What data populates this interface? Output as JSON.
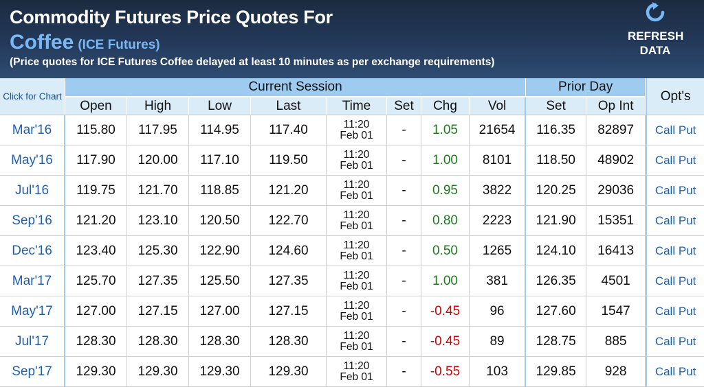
{
  "header": {
    "title": "Commodity Futures Price Quotes For",
    "commodity": "Coffee",
    "exchange": "(ICE Futures)",
    "note": "(Price quotes for ICE Futures Coffee delayed at least 10 minutes as per exchange requirements)",
    "refresh_icon": "refresh-icon",
    "refresh_label": "REFRESH DATA"
  },
  "table": {
    "click_chart_label": "Click for Chart",
    "group_current": "Current Session",
    "group_prior": "Prior Day",
    "opts_label": "Opt's",
    "columns": [
      "Open",
      "High",
      "Low",
      "Last",
      "Time",
      "Set",
      "Chg",
      "Vol",
      "Set",
      "Op Int"
    ],
    "rows": [
      {
        "month": "Mar'16",
        "open": "115.80",
        "high": "117.95",
        "low": "114.95",
        "last": "117.40",
        "time": "11:20",
        "date": "Feb 01",
        "set": "-",
        "chg": "1.05",
        "dir": "pos",
        "vol": "21654",
        "prior_set": "116.35",
        "op_int": "82897",
        "call": "Call",
        "put": "Put"
      },
      {
        "month": "May'16",
        "open": "117.90",
        "high": "120.00",
        "low": "117.10",
        "last": "119.50",
        "time": "11:20",
        "date": "Feb 01",
        "set": "-",
        "chg": "1.00",
        "dir": "pos",
        "vol": "8101",
        "prior_set": "118.50",
        "op_int": "48902",
        "call": "Call",
        "put": "Put"
      },
      {
        "month": "Jul'16",
        "open": "119.75",
        "high": "121.70",
        "low": "118.85",
        "last": "121.20",
        "time": "11:20",
        "date": "Feb 01",
        "set": "-",
        "chg": "0.95",
        "dir": "pos",
        "vol": "3822",
        "prior_set": "120.25",
        "op_int": "29036",
        "call": "Call",
        "put": "Put"
      },
      {
        "month": "Sep'16",
        "open": "121.20",
        "high": "123.10",
        "low": "120.50",
        "last": "122.70",
        "time": "11:20",
        "date": "Feb 01",
        "set": "-",
        "chg": "0.80",
        "dir": "pos",
        "vol": "2223",
        "prior_set": "121.90",
        "op_int": "15351",
        "call": "Call",
        "put": "Put"
      },
      {
        "month": "Dec'16",
        "open": "123.40",
        "high": "125.30",
        "low": "122.90",
        "last": "124.60",
        "time": "11:20",
        "date": "Feb 01",
        "set": "-",
        "chg": "0.50",
        "dir": "pos",
        "vol": "1265",
        "prior_set": "124.10",
        "op_int": "16413",
        "call": "Call",
        "put": "Put"
      },
      {
        "month": "Mar'17",
        "open": "125.70",
        "high": "127.35",
        "low": "125.50",
        "last": "127.35",
        "time": "11:20",
        "date": "Feb 01",
        "set": "-",
        "chg": "1.00",
        "dir": "pos",
        "vol": "381",
        "prior_set": "126.35",
        "op_int": "4501",
        "call": "Call",
        "put": "Put"
      },
      {
        "month": "May'17",
        "open": "127.00",
        "high": "127.15",
        "low": "127.00",
        "last": "127.15",
        "time": "11:20",
        "date": "Feb 01",
        "set": "-",
        "chg": "-0.45",
        "dir": "neg",
        "vol": "96",
        "prior_set": "127.60",
        "op_int": "1547",
        "call": "Call",
        "put": "Put"
      },
      {
        "month": "Jul'17",
        "open": "128.30",
        "high": "128.30",
        "low": "128.30",
        "last": "128.30",
        "time": "11:20",
        "date": "Feb 01",
        "set": "-",
        "chg": "-0.45",
        "dir": "neg",
        "vol": "89",
        "prior_set": "128.75",
        "op_int": "885",
        "call": "Call",
        "put": "Put"
      },
      {
        "month": "Sep'17",
        "open": "129.30",
        "high": "129.30",
        "low": "129.30",
        "last": "129.30",
        "time": "11:20",
        "date": "Feb 01",
        "set": "-",
        "chg": "-0.55",
        "dir": "neg",
        "vol": "103",
        "prior_set": "129.85",
        "op_int": "928",
        "call": "Call",
        "put": "Put"
      }
    ]
  },
  "colors": {
    "header_bg": "#23395a",
    "header_accent": "#79b8f5",
    "table_header": "#9ecbf0",
    "table_subheader": "#dbecf9",
    "link": "#1f5fb0",
    "positive": "#1e7a1e",
    "negative": "#d00000"
  }
}
